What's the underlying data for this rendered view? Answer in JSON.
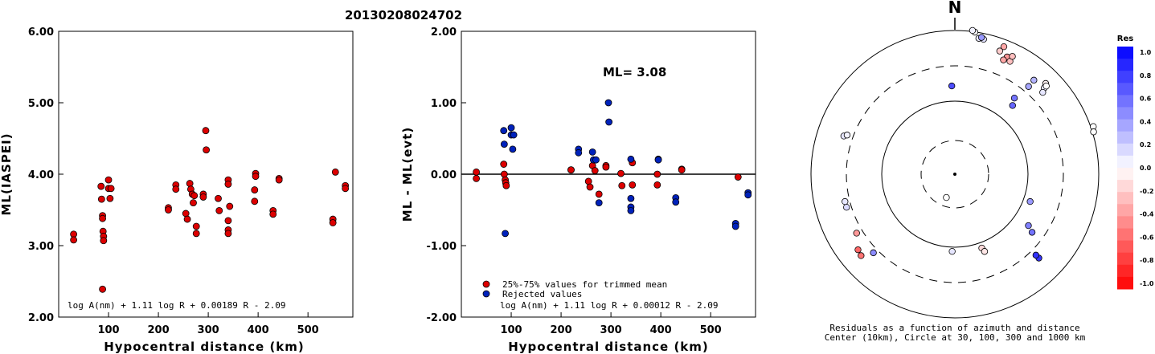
{
  "figure": {
    "event_id": "20130208024702",
    "panel1": {
      "ylabel": "ML(IASPEI)",
      "xlabel": "Hypocentral distance (km)",
      "formula": "log A(nm) + 1.11 log R + 0.00189 R - 2.09"
    },
    "panel2": {
      "ylabel": "ML - ML(evt)",
      "xlabel": "Hypocentral distance (km)",
      "ml_text": "ML= 3.08",
      "legend_trimmed": "25%-75% values for trimmed mean",
      "legend_rejected": "Rejected values",
      "formula": "log A(nm) + 1.11 log R + 0.00012 R - 2.09"
    },
    "panel3": {
      "north": "N",
      "caption1": "Residuals as a function of azimuth and distance",
      "caption2": "Center (10km), Circle at 30, 100, 300 and 1000 km",
      "colorbar_title": "Res",
      "colorbar_ticks": [
        "1.0",
        "0.8",
        "0.6",
        "0.4",
        "0.2",
        "0.0",
        "-0.2",
        "-0.4",
        "-0.6",
        "-0.8",
        "-1.0"
      ]
    }
  },
  "colors": {
    "accepted": "#dd0000",
    "rejected": "#0022bb",
    "axis": "#000000"
  },
  "chart_data": [
    {
      "type": "scatter",
      "title": "20130208024702",
      "xlabel": "Hypocentral distance (km)",
      "ylabel": "ML(IASPEI)",
      "xlim": [
        0,
        590
      ],
      "ylim": [
        2.0,
        6.0
      ],
      "xticks": [
        "100",
        "200",
        "300",
        "400",
        "500"
      ],
      "yticks": [
        "2.00",
        "3.00",
        "4.00",
        "5.00",
        "6.00"
      ],
      "series": [
        {
          "points": [
            [
              30,
              3.16
            ],
            [
              30,
              3.08
            ],
            [
              85,
              3.83
            ],
            [
              86,
              3.65
            ],
            [
              88,
              3.42
            ],
            [
              88,
              3.38
            ],
            [
              89,
              3.2
            ],
            [
              90,
              3.13
            ],
            [
              90,
              3.07
            ],
            [
              88,
              2.39
            ],
            [
              100,
              3.92
            ],
            [
              100,
              3.8
            ],
            [
              103,
              3.66
            ],
            [
              105,
              3.8
            ],
            [
              220,
              3.53
            ],
            [
              220,
              3.5
            ],
            [
              235,
              3.85
            ],
            [
              235,
              3.79
            ],
            [
              255,
              3.45
            ],
            [
              258,
              3.37
            ],
            [
              263,
              3.87
            ],
            [
              265,
              3.79
            ],
            [
              268,
              3.72
            ],
            [
              270,
              3.6
            ],
            [
              272,
              3.7
            ],
            [
              276,
              3.27
            ],
            [
              276,
              3.17
            ],
            [
              290,
              3.72
            ],
            [
              290,
              3.68
            ],
            [
              295,
              4.61
            ],
            [
              296,
              4.34
            ],
            [
              320,
              3.66
            ],
            [
              322,
              3.49
            ],
            [
              340,
              3.92
            ],
            [
              340,
              3.86
            ],
            [
              340,
              3.35
            ],
            [
              340,
              3.22
            ],
            [
              340,
              3.17
            ],
            [
              343,
              3.55
            ],
            [
              395,
              4.01
            ],
            [
              395,
              3.97
            ],
            [
              393,
              3.78
            ],
            [
              393,
              3.62
            ],
            [
              430,
              3.49
            ],
            [
              430,
              3.44
            ],
            [
              442,
              3.94
            ],
            [
              442,
              3.92
            ],
            [
              550,
              3.37
            ],
            [
              550,
              3.32
            ],
            [
              555,
              4.03
            ],
            [
              575,
              3.84
            ],
            [
              575,
              3.8
            ]
          ]
        }
      ]
    },
    {
      "type": "scatter",
      "xlabel": "Hypocentral distance (km)",
      "ylabel": "ML - ML(evt)",
      "xlim": [
        0,
        590
      ],
      "ylim": [
        -2.0,
        2.0
      ],
      "xticks": [
        "100",
        "200",
        "300",
        "400",
        "500"
      ],
      "yticks": [
        "-2.00",
        "-1.00",
        "0.00",
        "1.00",
        "2.00"
      ],
      "ml": "3.08",
      "series": [
        {
          "name": "25%-75% values for trimmed mean",
          "points": [
            [
              30,
              0.03
            ],
            [
              30,
              -0.06
            ],
            [
              85,
              0.14
            ],
            [
              86,
              0.0
            ],
            [
              88,
              -0.08
            ],
            [
              89,
              -0.12
            ],
            [
              90,
              -0.16
            ],
            [
              220,
              0.06
            ],
            [
              220,
              0.06
            ],
            [
              255,
              -0.1
            ],
            [
              258,
              -0.18
            ],
            [
              263,
              0.12
            ],
            [
              268,
              0.05
            ],
            [
              276,
              -0.28
            ],
            [
              290,
              0.12
            ],
            [
              290,
              0.1
            ],
            [
              320,
              0.01
            ],
            [
              322,
              -0.16
            ],
            [
              343,
              0.16
            ],
            [
              343,
              -0.15
            ],
            [
              393,
              0.0
            ],
            [
              393,
              -0.15
            ],
            [
              442,
              0.07
            ],
            [
              442,
              0.06
            ],
            [
              555,
              -0.04
            ]
          ]
        },
        {
          "name": "Rejected values",
          "points": [
            [
              85,
              0.61
            ],
            [
              86,
              0.42
            ],
            [
              88,
              -0.83
            ],
            [
              100,
              0.65
            ],
            [
              100,
              0.55
            ],
            [
              103,
              0.35
            ],
            [
              105,
              0.55
            ],
            [
              235,
              0.35
            ],
            [
              235,
              0.3
            ],
            [
              263,
              0.31
            ],
            [
              265,
              0.2
            ],
            [
              270,
              0.2
            ],
            [
              276,
              -0.4
            ],
            [
              295,
              1.0
            ],
            [
              296,
              0.73
            ],
            [
              340,
              0.21
            ],
            [
              340,
              -0.34
            ],
            [
              340,
              -0.46
            ],
            [
              340,
              -0.51
            ],
            [
              395,
              0.21
            ],
            [
              395,
              0.2
            ],
            [
              430,
              -0.33
            ],
            [
              430,
              -0.39
            ],
            [
              550,
              -0.69
            ],
            [
              550,
              -0.73
            ],
            [
              575,
              -0.26
            ],
            [
              575,
              -0.29
            ]
          ]
        }
      ]
    },
    {
      "type": "scatter",
      "title": "Residuals as a function of azimuth and distance",
      "projection": "polar (azimuth clockwise from N, log distance)",
      "rings_km": [
        30,
        100,
        300,
        1000
      ],
      "color_range": [
        -1.0,
        1.0
      ],
      "points": [
        [
          12,
          1.0,
          0.12
        ],
        [
          10,
          1.0,
          0.08
        ],
        [
          11,
          1.01,
          0.4
        ],
        [
          8,
          1.04,
          0.02
        ],
        [
          7,
          1.05,
          0.05
        ],
        [
          21,
          0.99,
          -0.35
        ],
        [
          20,
          0.95,
          -0.2
        ],
        [
          24,
          0.93,
          -0.4
        ],
        [
          23,
          0.9,
          -0.35
        ],
        [
          26,
          0.91,
          -0.25
        ],
        [
          26,
          0.95,
          -0.25
        ],
        [
          40,
          0.89,
          0.3
        ],
        [
          40,
          0.83,
          0.35
        ],
        [
          45,
          0.93,
          -0.05
        ],
        [
          46,
          0.9,
          0.08
        ],
        [
          46,
          0.92,
          0.0
        ],
        [
          47,
          0.87,
          0.1
        ],
        [
          38,
          0.7,
          0.55
        ],
        [
          40,
          0.65,
          0.6
        ],
        [
          358,
          0.64,
          0.7
        ],
        [
          71,
          1.06,
          0.0
        ],
        [
          73,
          1.05,
          0.0
        ],
        [
          110,
          0.58,
          0.4
        ],
        [
          125,
          0.65,
          0.5
        ],
        [
          127,
          0.7,
          0.55
        ],
        [
          135,
          0.86,
          0.8
        ],
        [
          135,
          0.83,
          0.8
        ],
        [
          160,
          0.57,
          -0.15
        ],
        [
          159,
          0.6,
          -0.1
        ],
        [
          182,
          0.56,
          0.1
        ],
        [
          200,
          0.18,
          0.0
        ],
        [
          226,
          0.82,
          0.45
        ],
        [
          229,
          0.9,
          -0.55
        ],
        [
          232,
          0.89,
          -0.6
        ],
        [
          239,
          0.83,
          -0.4
        ],
        [
          253,
          0.82,
          0.15
        ],
        [
          256,
          0.82,
          0.1
        ],
        [
          289,
          0.85,
          0.1
        ],
        [
          290,
          0.83,
          0.05
        ]
      ]
    }
  ]
}
